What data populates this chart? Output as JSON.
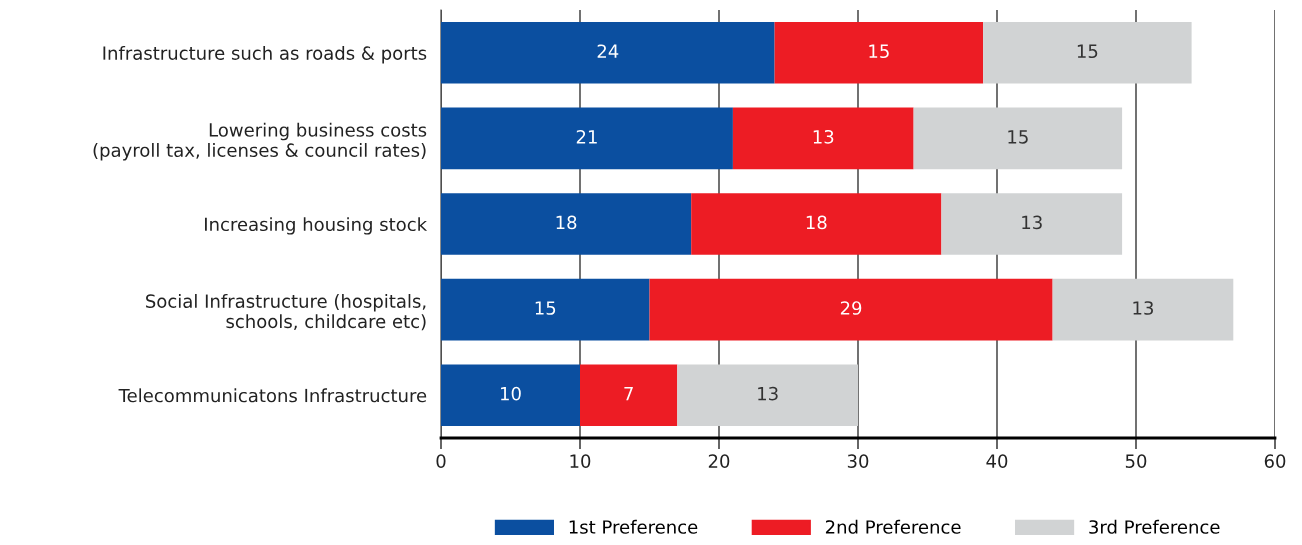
{
  "chart_data": {
    "type": "bar",
    "orientation": "horizontal",
    "stacked": true,
    "categories": [
      "Infrastructure such as roads & ports",
      "Lowering business costs\n(payroll tax, licenses & council rates)",
      "Increasing housing stock",
      "Social Infrastructure (hospitals,\nschools, childcare etc)",
      "Telecommunicatons Infrastructure"
    ],
    "series": [
      {
        "name": "1st Preference",
        "color": "#0b4fa0",
        "values": [
          24,
          21,
          18,
          15,
          10
        ]
      },
      {
        "name": "2nd Preference",
        "color": "#ed1c24",
        "values": [
          15,
          13,
          18,
          29,
          7
        ]
      },
      {
        "name": "3rd Preference",
        "color": "#d1d3d4",
        "values": [
          15,
          15,
          13,
          13,
          13
        ]
      }
    ],
    "xlim": [
      0,
      60
    ],
    "xticks": [
      0,
      10,
      20,
      30,
      40,
      50,
      60
    ],
    "grid": "x",
    "data_labels": true,
    "legend": "bottom"
  }
}
